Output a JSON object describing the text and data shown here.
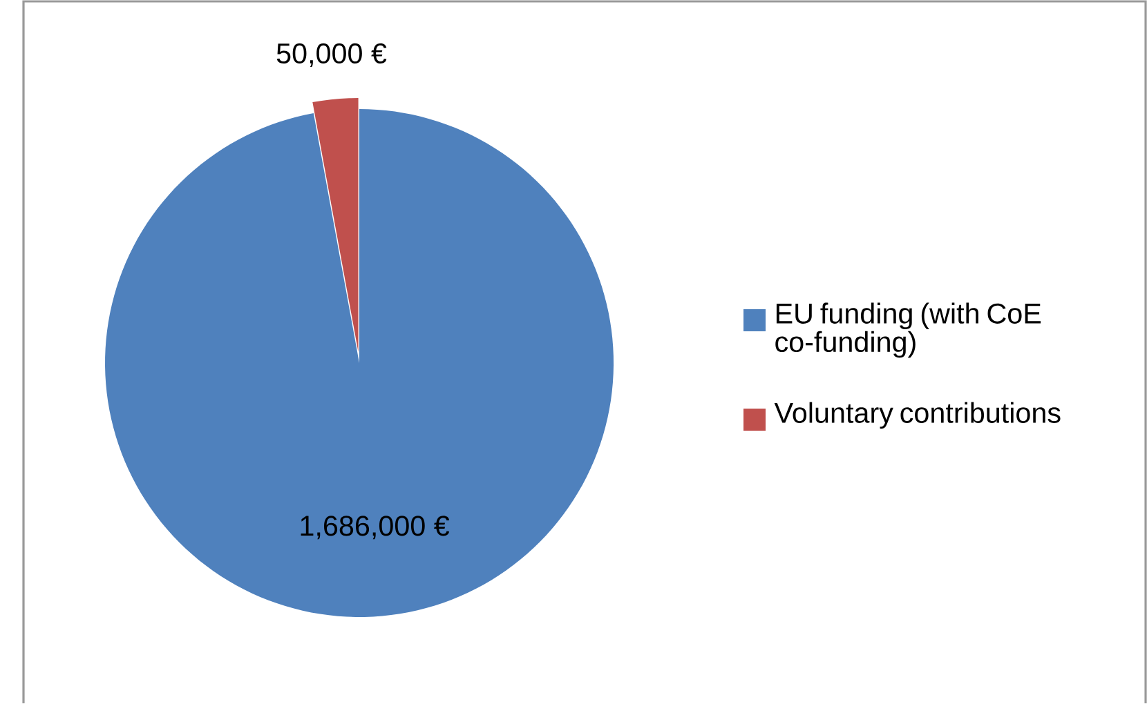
{
  "chart_data": {
    "type": "pie",
    "categories": [
      "EU funding (with CoE co-funding)",
      "Voluntary contributions"
    ],
    "values": [
      1686000,
      50000
    ],
    "colors": [
      "#4f81bd",
      "#c0504d"
    ],
    "value_labels": [
      "1,686,000 €",
      "50,000 €"
    ],
    "legend": "right"
  }
}
